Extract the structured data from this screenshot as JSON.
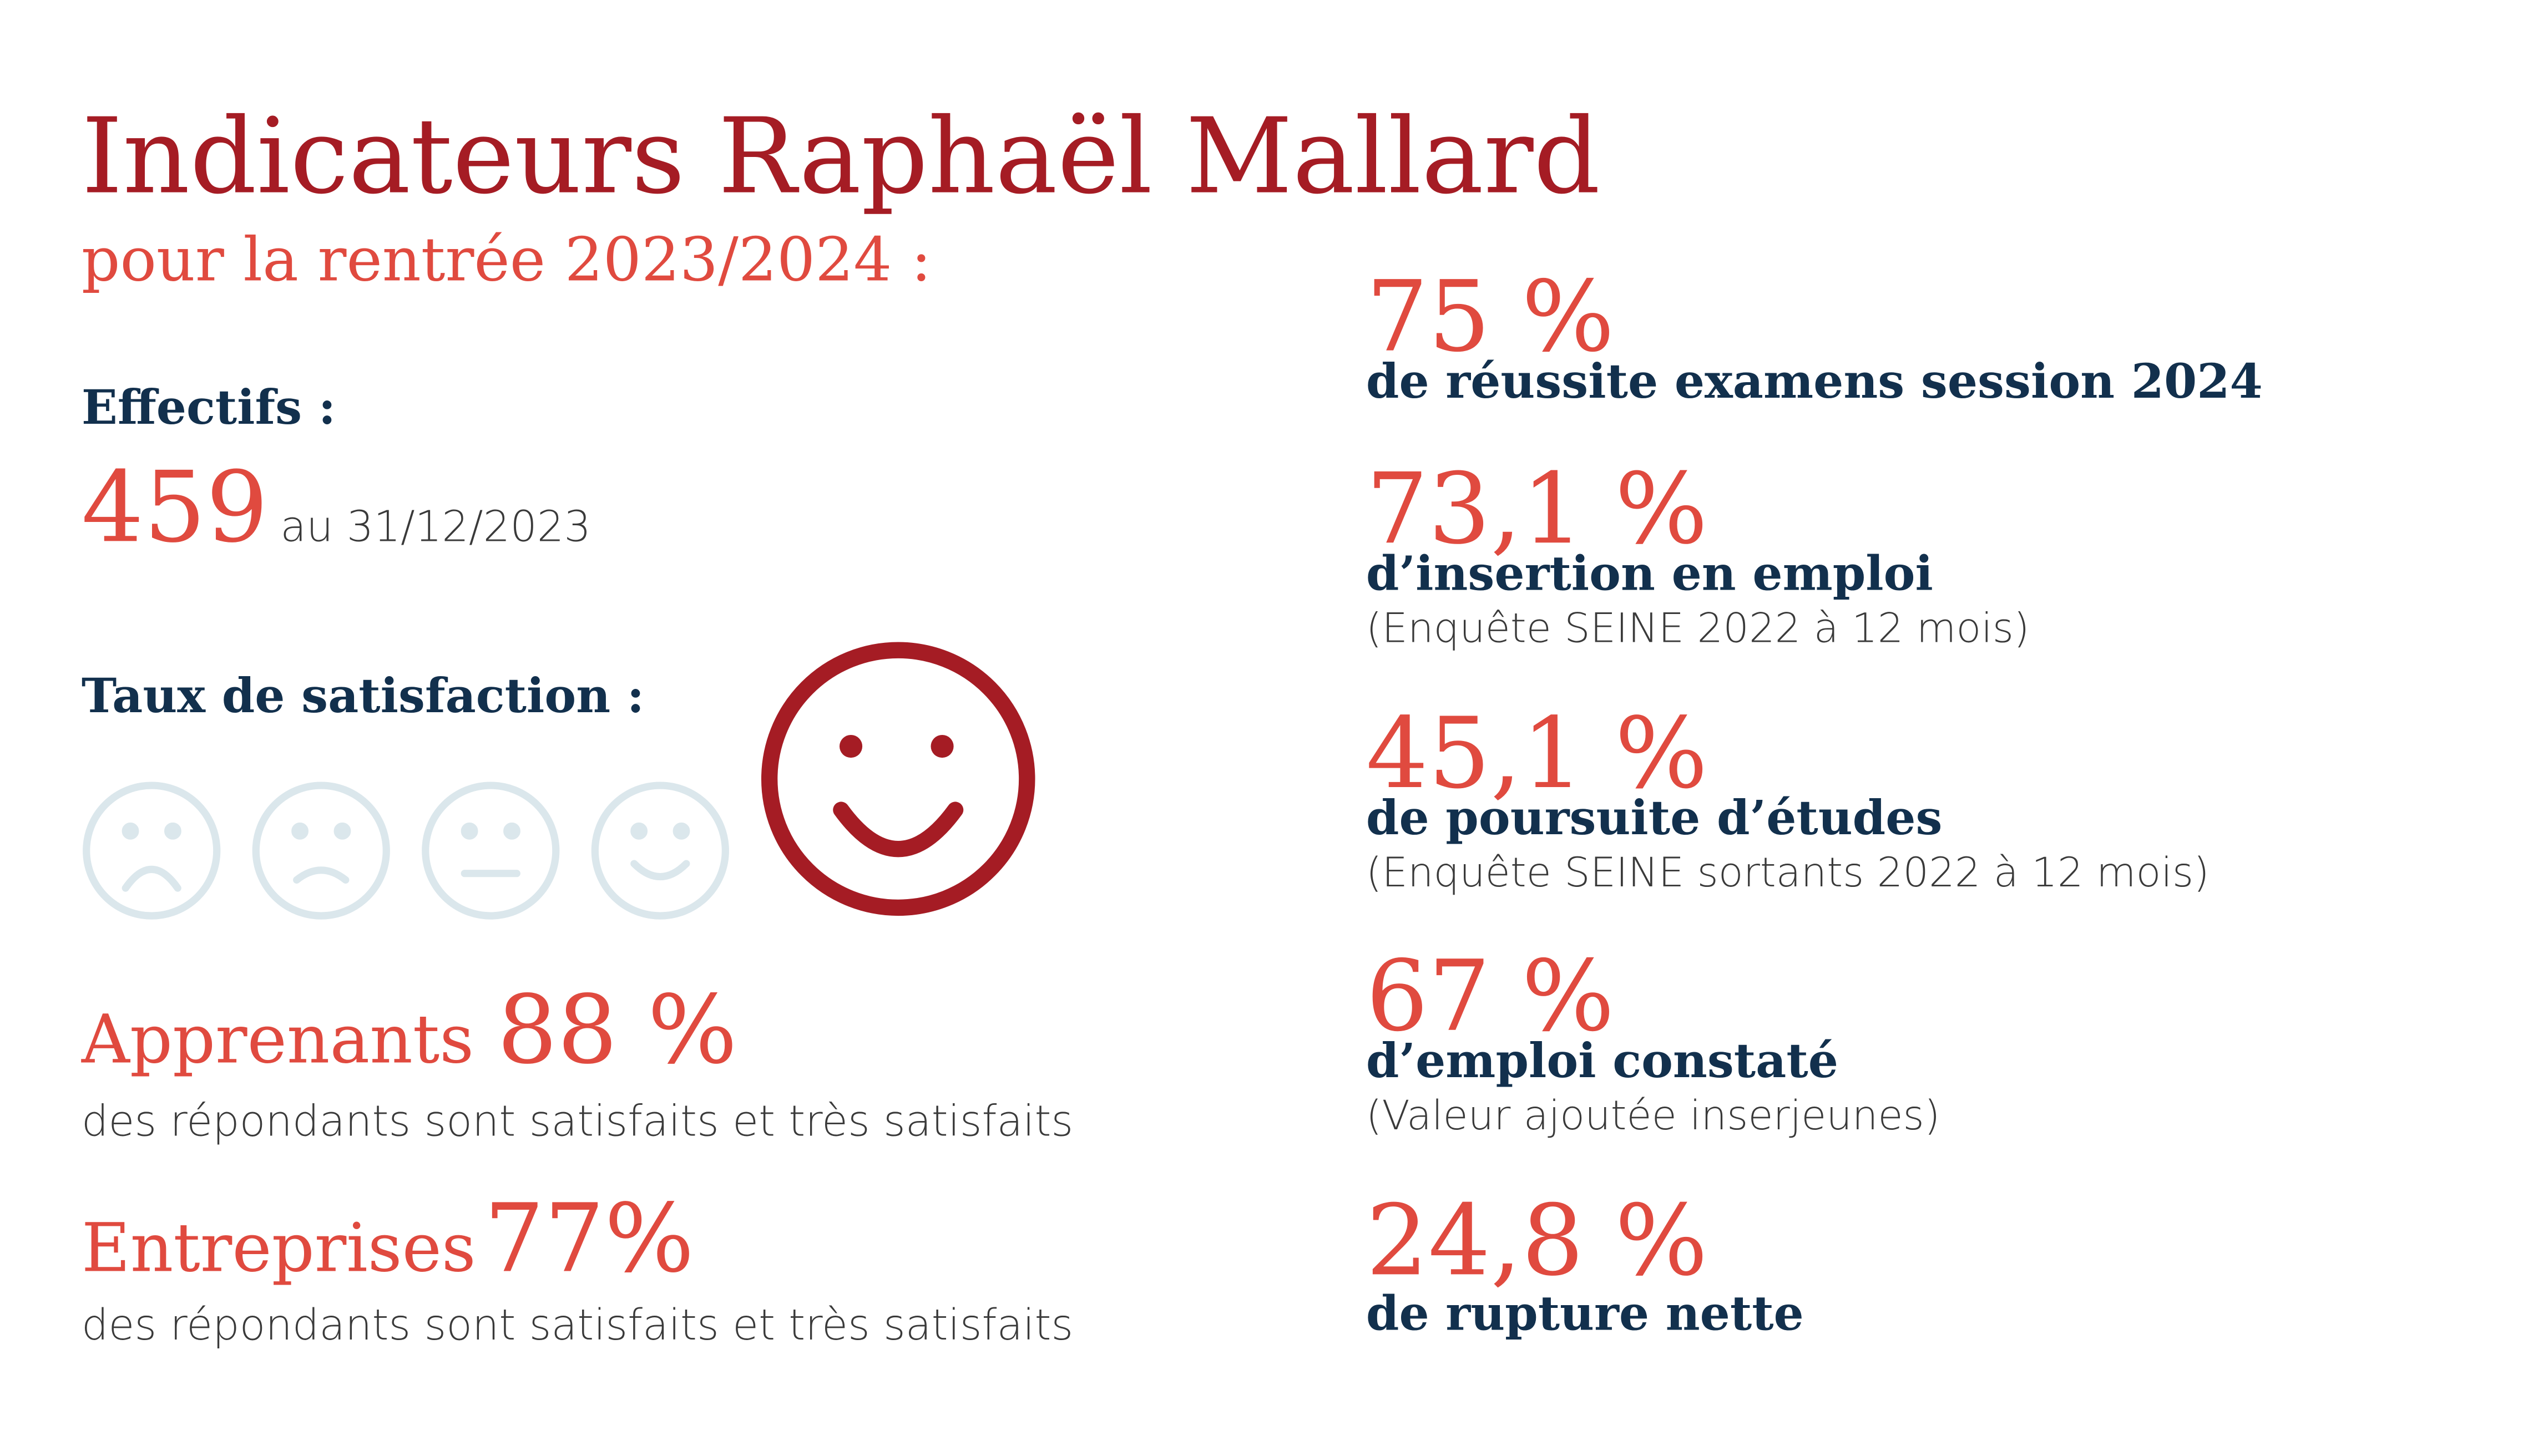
{
  "title": "Indicateurs Raphaël Mallard",
  "subtitle": "pour la rentrée 2023/2024 :",
  "effectifs": {
    "label": "Effectifs :",
    "value": "459",
    "note": "au 31/12/2023"
  },
  "satisfaction": {
    "label": "Taux de satisfaction :",
    "items": [
      {
        "name": "Apprenants",
        "value": "88 %",
        "note": "des répondants sont satisfaits et très satisfaits"
      },
      {
        "name": "Entreprises",
        "value": "77%",
        "note": "des répondants sont satisfaits et très satisfaits"
      }
    ]
  },
  "indicators": [
    {
      "value": "75 %",
      "label": "de réussite examens session 2024"
    },
    {
      "value": "73,1 %",
      "label": "d’insertion en emploi",
      "note": "(Enquête SEINE 2022 à 12 mois)"
    },
    {
      "value": "45,1 %",
      "label": "de poursuite d’études",
      "note": "(Enquête SEINE sortants 2022 à 12 mois)"
    },
    {
      "value": "67 %",
      "label": "d’emploi constaté",
      "note": "(Valeur ajoutée inserjeunes)"
    },
    {
      "value": "24,8 %",
      "label": "de rupture nette"
    }
  ]
}
